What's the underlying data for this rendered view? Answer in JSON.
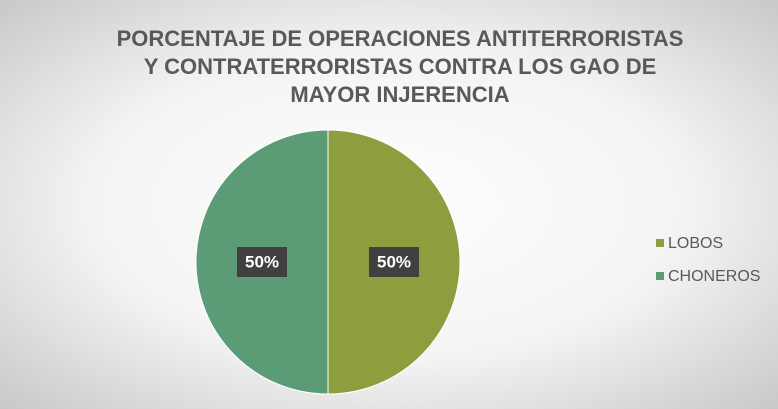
{
  "chart_data": {
    "type": "pie",
    "title": [
      "PORCENTAJE DE OPERACIONES ANTITERRORISTAS",
      "Y  CONTRATERRORISTAS  CONTRA LOS GAO DE",
      "MAYOR INJERENCIA"
    ],
    "categories": [
      "LOBOS",
      "CHONEROS"
    ],
    "values": [
      50,
      50
    ],
    "value_labels": [
      "50%",
      "50%"
    ],
    "colors": [
      "#8c9e3e",
      "#5b9b75"
    ],
    "legend": "right"
  }
}
